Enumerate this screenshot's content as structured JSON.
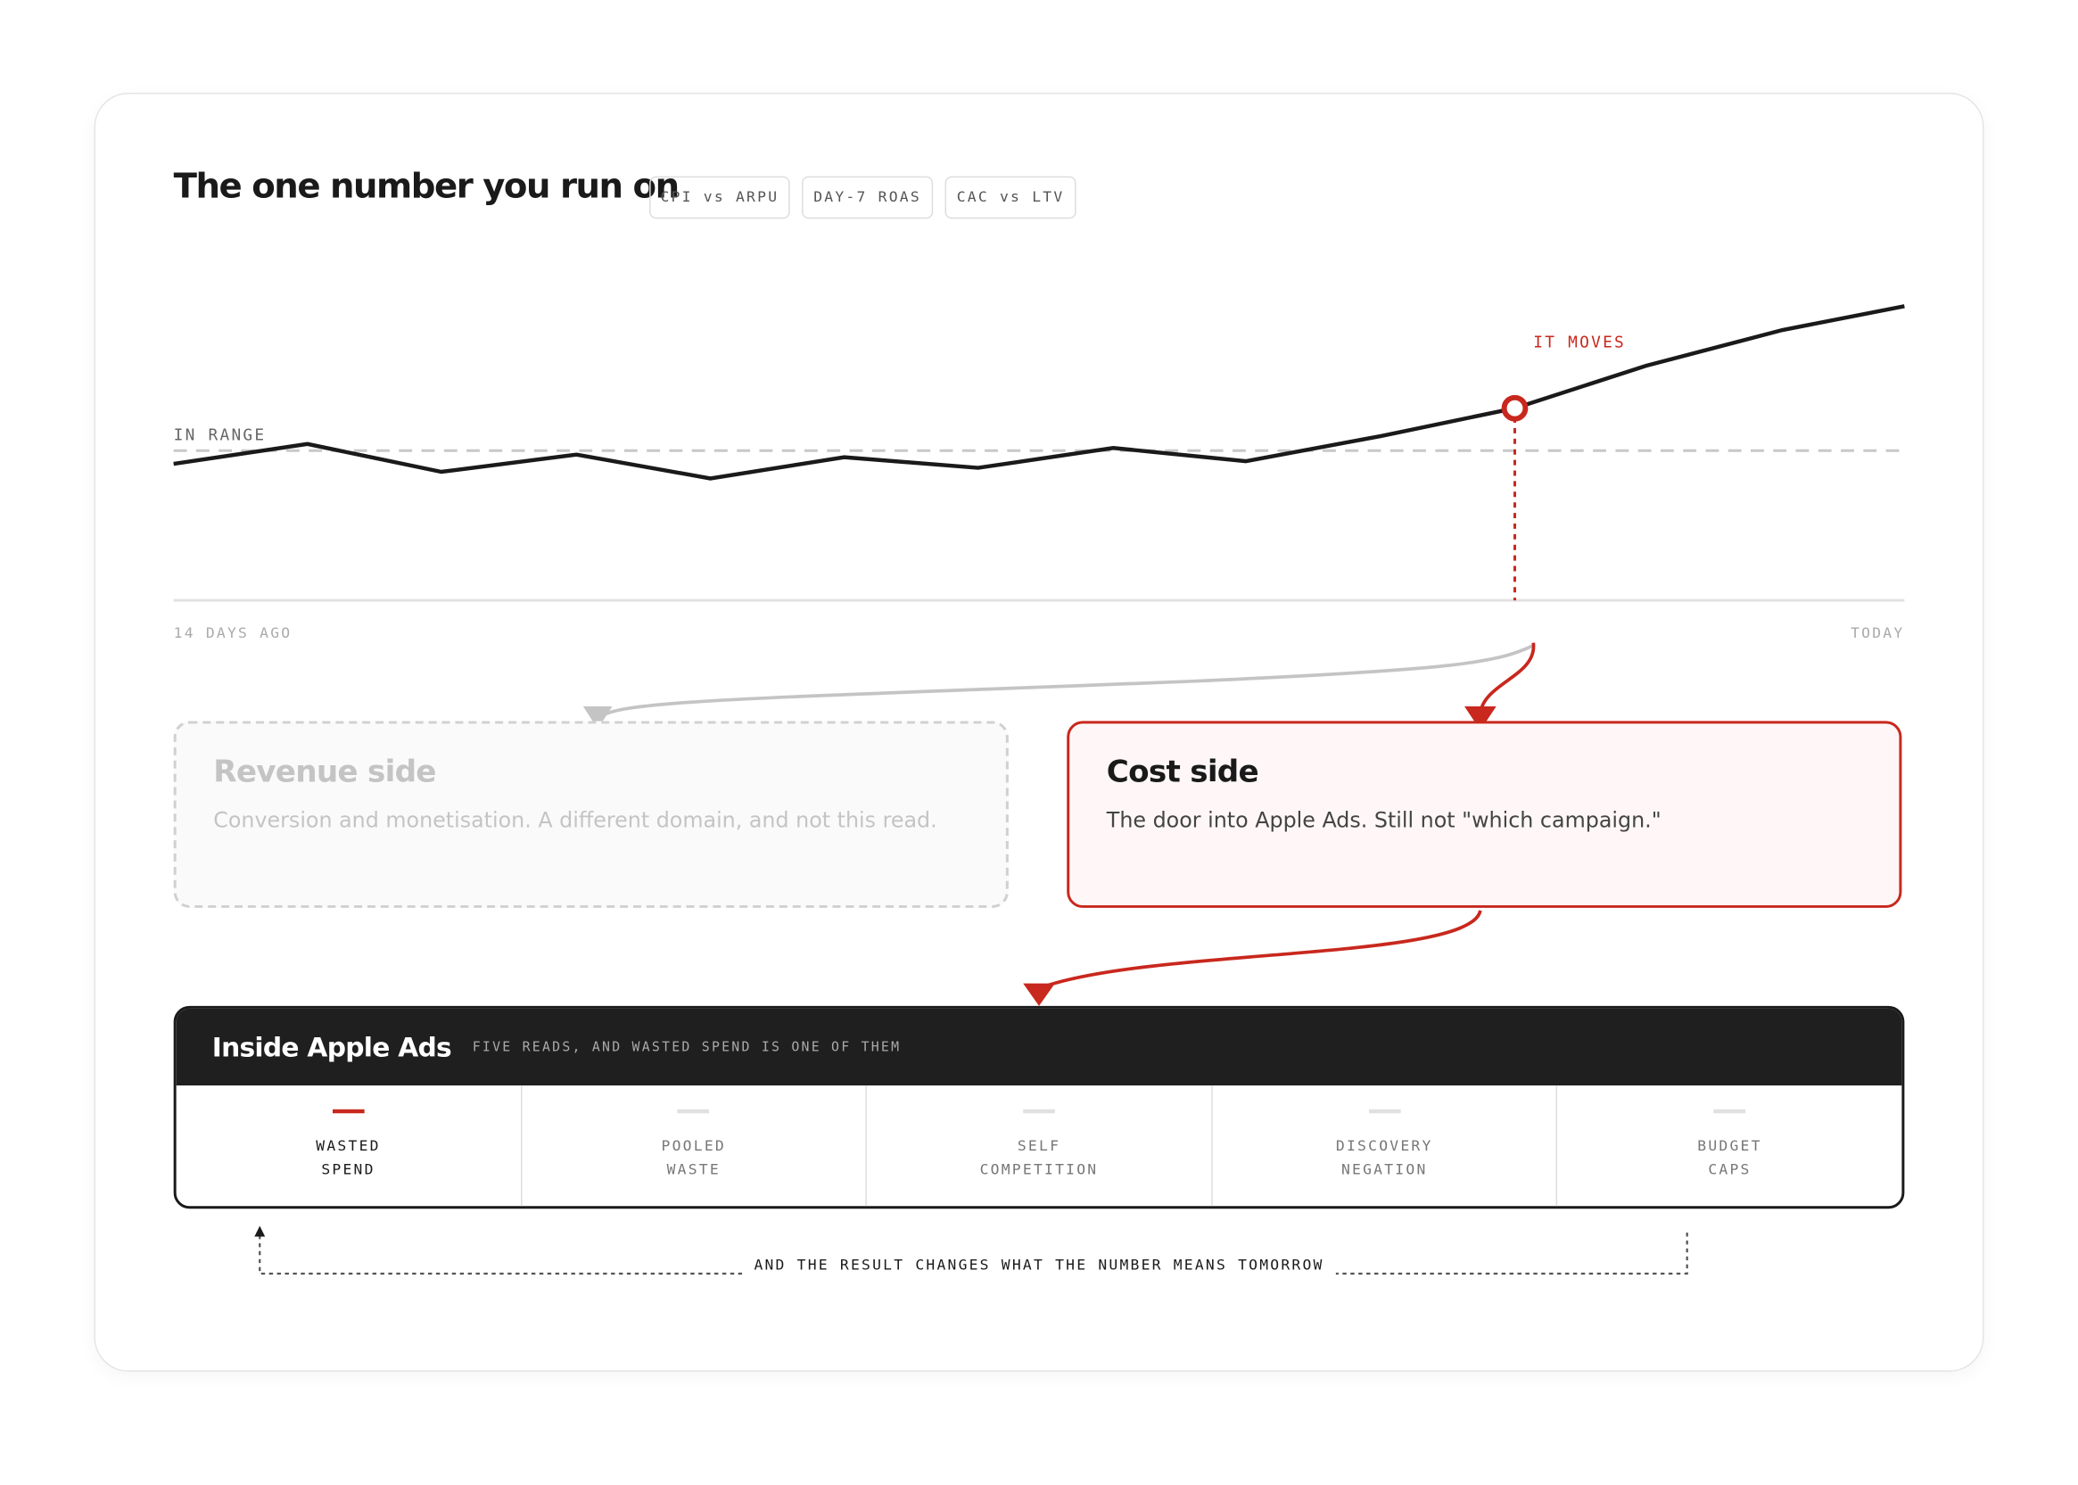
{
  "header": {
    "title": "The one number you run on",
    "tabs": [
      "CPI vs ARPU",
      "DAY-7 ROAS",
      "CAC vs LTV"
    ]
  },
  "chart": {
    "range_label": "IN RANGE",
    "annotation": "IT MOVES",
    "x_start": "14 DAYS AGO",
    "x_end": "TODAY"
  },
  "branches": [
    {
      "title": "Revenue side",
      "text": "Conversion and monetisation. A different domain, and not this read."
    },
    {
      "title": "Cost side",
      "text": "The door into Apple Ads. Still not \"which campaign.\""
    }
  ],
  "panel": {
    "title": "Inside Apple Ads",
    "subtitle": "FIVE READS, AND WASTED SPEND IS ONE OF THEM",
    "items": [
      [
        "WASTED",
        "SPEND"
      ],
      [
        "POOLED",
        "WASTE"
      ],
      [
        "SELF",
        "COMPETITION"
      ],
      [
        "DISCOVERY",
        "NEGATION"
      ],
      [
        "BUDGET",
        "CAPS"
      ]
    ]
  },
  "footer": {
    "loop_label": "AND THE RESULT CHANGES WHAT THE NUMBER MEANS TOMORROW"
  }
}
